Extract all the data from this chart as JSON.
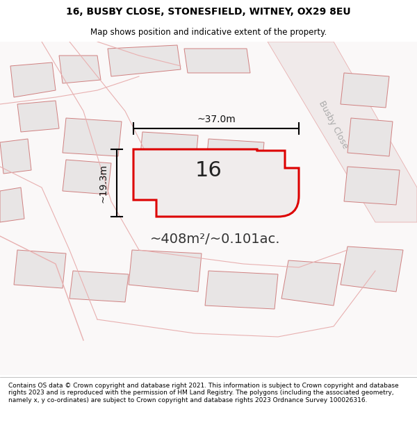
{
  "title_line1": "16, BUSBY CLOSE, STONESFIELD, WITNEY, OX29 8EU",
  "title_line2": "Map shows position and indicative extent of the property.",
  "footer_text": "Contains OS data © Crown copyright and database right 2021. This information is subject to Crown copyright and database rights 2023 and is reproduced with the permission of HM Land Registry. The polygons (including the associated geometry, namely x, y co-ordinates) are subject to Crown copyright and database rights 2023 Ordnance Survey 100026316.",
  "area_text": "~408m²/~0.101ac.",
  "label_number": "16",
  "dim_width": "~37.0m",
  "dim_height": "~19.3m",
  "road_label": "Busby Close",
  "map_bg": "#faf8f8",
  "parcel_fill": "#e8e5e5",
  "parcel_edge": "#d08080",
  "road_line": "#e8b0b0",
  "plot_fill": "#f0ecec",
  "plot_outline": "#dd0000",
  "title_fontsize": 10,
  "subtitle_fontsize": 8.5,
  "footer_fontsize": 6.5
}
